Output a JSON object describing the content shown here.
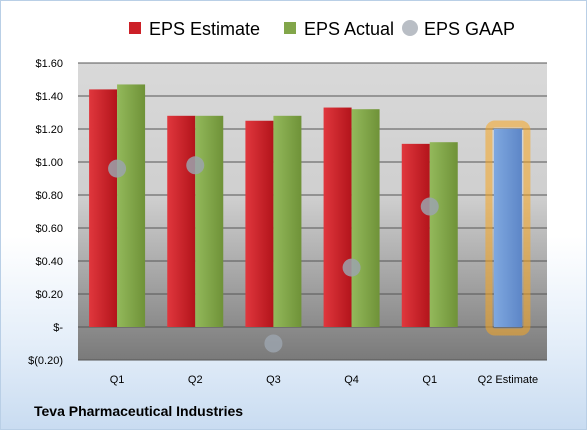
{
  "chart_data": {
    "type": "bar",
    "categories": [
      "Q1",
      "Q2",
      "Q3",
      "Q4",
      "Q1",
      "Q2 Estimate"
    ],
    "series": [
      {
        "name": "EPS Estimate",
        "values": [
          1.44,
          1.28,
          1.25,
          1.33,
          1.11,
          null
        ],
        "color": "#cc2027"
      },
      {
        "name": "EPS Actual",
        "values": [
          1.47,
          1.28,
          1.28,
          1.32,
          1.12,
          null
        ],
        "color": "#82a64a"
      },
      {
        "name": "EPS GAAP",
        "type": "scatter",
        "values": [
          0.96,
          0.98,
          -0.1,
          0.36,
          0.73,
          null
        ],
        "color": "#9ba3ad"
      },
      {
        "name": "",
        "values": [
          null,
          null,
          null,
          null,
          null,
          1.2
        ],
        "color": "#6f99d6",
        "highlight": "#f5a623"
      }
    ],
    "ylim": [
      -0.2,
      1.6
    ],
    "yticks": [
      1.6,
      1.4,
      1.2,
      1.0,
      0.8,
      0.6,
      0.4,
      0.2,
      0.0,
      -0.2
    ],
    "ytick_labels": [
      "$1.60",
      "$1.40",
      "$1.20",
      "$1.00",
      "$0.80",
      "$0.60",
      "$0.40",
      "$0.20",
      "$-",
      "$(0.20)"
    ],
    "grid": true,
    "legend": "top"
  },
  "footer": {
    "title": "Teva Pharmaceutical Industries"
  }
}
